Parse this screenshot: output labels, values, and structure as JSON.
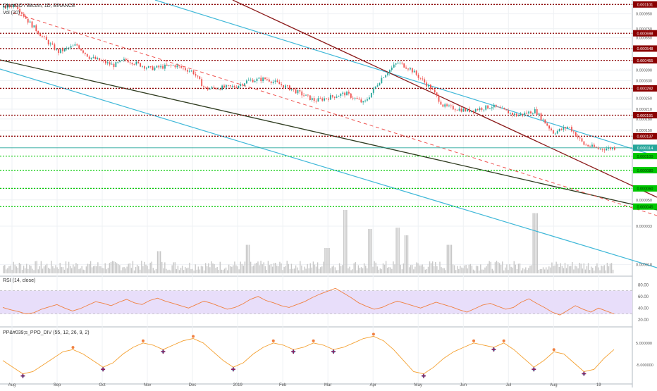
{
  "header": {
    "symbol_title": "QtumGO / Bitcoin, 1D, BINANCE",
    "volume_label": "Vol (20)"
  },
  "colors": {
    "grid": "#eef1f4",
    "up": "#26a69a",
    "down": "#ef5350",
    "volume": "#c8c8c8",
    "resistance": "#8b0000",
    "support_green": "#00c800",
    "channel_cyan": "#40b8d8",
    "trend_dark_red": "#8b1a1a",
    "trend_dark_green": "#2e3b1f",
    "rsi_band": "#e8defa",
    "rsi_line": "#f08040",
    "ppo_line": "#f4a030",
    "last_price": "#26a69a"
  },
  "chart_data": [
    {
      "type": "candlestick",
      "panel": "price",
      "title": "QtumGO / Bitcoin, 1D, BINANCE",
      "x_ticks": [
        "Aug",
        "Sep",
        "Oct",
        "Nov",
        "Dec",
        "2019",
        "Feb",
        "Mar",
        "Apr",
        "May",
        "Jun",
        "Jul",
        "Aug",
        "19"
      ],
      "y_scale": "log",
      "ylim": [
        1.6e-05,
        0.00113
      ],
      "y_ticks": [
        "0.000950",
        "0.000750",
        "0.000650",
        "0.000390",
        "0.000330",
        "0.000250",
        "0.000210",
        "0.000180",
        "0.000150",
        "0.000060",
        "0.000050",
        "0.000033",
        "0.000018"
      ],
      "y_tick_values": [
        0.00095,
        0.00075,
        0.00065,
        0.00039,
        0.00033,
        0.00025,
        0.00021,
        0.00018,
        0.00015,
        6e-05,
        5e-05,
        3.3e-05,
        1.8e-05
      ],
      "resistance_levels": [
        {
          "label": "0.001101",
          "value": 0.001101
        },
        {
          "label": "0.000698",
          "value": 0.000698
        },
        {
          "label": "0.000548",
          "value": 0.000548
        },
        {
          "label": "0.000455",
          "value": 0.000455
        },
        {
          "label": "0.000292",
          "value": 0.000292
        },
        {
          "label": "0.000191",
          "value": 0.000191
        },
        {
          "label": "0.000137",
          "value": 0.000137
        }
      ],
      "support_levels": [
        {
          "label": "0.000100",
          "value": 0.0001
        },
        {
          "label": "0.000080",
          "value": 8e-05
        },
        {
          "label": "0.000060",
          "value": 6e-05
        },
        {
          "label": "0.000045",
          "value": 4.5e-05
        }
      ],
      "last_price": {
        "label": "0.000114",
        "value": 0.000114
      },
      "price_path_knots": [
        [
          0,
          0.00105
        ],
        [
          0.02,
          0.0011
        ],
        [
          0.04,
          0.00085
        ],
        [
          0.07,
          0.00062
        ],
        [
          0.09,
          0.00052
        ],
        [
          0.12,
          0.00058
        ],
        [
          0.14,
          0.00048
        ],
        [
          0.18,
          0.00042
        ],
        [
          0.2,
          0.00046
        ],
        [
          0.24,
          0.0004
        ],
        [
          0.28,
          0.00042
        ],
        [
          0.31,
          0.00038
        ],
        [
          0.33,
          0.00029
        ],
        [
          0.38,
          0.0003
        ],
        [
          0.4,
          0.00033
        ],
        [
          0.43,
          0.00034
        ],
        [
          0.47,
          0.00029
        ],
        [
          0.51,
          0.00024
        ],
        [
          0.56,
          0.00027
        ],
        [
          0.59,
          0.00023
        ],
        [
          0.62,
          0.00035
        ],
        [
          0.645,
          0.00044
        ],
        [
          0.665,
          0.0004
        ],
        [
          0.7,
          0.00029
        ],
        [
          0.72,
          0.00022
        ],
        [
          0.76,
          0.000205
        ],
        [
          0.8,
          0.00022
        ],
        [
          0.84,
          0.00019
        ],
        [
          0.87,
          0.000205
        ],
        [
          0.9,
          0.000145
        ],
        [
          0.925,
          0.00016
        ],
        [
          0.95,
          0.00012
        ],
        [
          0.975,
          0.000112
        ],
        [
          1.0,
          0.000114
        ]
      ],
      "volume_spikes": [
        {
          "x": 0.255,
          "v": 0.35
        },
        {
          "x": 0.4,
          "v": 0.45
        },
        {
          "x": 0.53,
          "v": 0.4
        },
        {
          "x": 0.56,
          "v": 1.0
        },
        {
          "x": 0.6,
          "v": 0.7
        },
        {
          "x": 0.645,
          "v": 0.72
        },
        {
          "x": 0.66,
          "v": 0.6
        },
        {
          "x": 0.87,
          "v": 0.95
        },
        {
          "x": 0.73,
          "v": 0.45
        }
      ]
    },
    {
      "type": "line",
      "panel": "rsi",
      "title": "RSI (14, close)",
      "ylim": [
        10,
        90
      ],
      "y_ticks": [
        "80.00",
        "60.00",
        "40.00",
        "20.00"
      ],
      "y_tick_values": [
        80,
        60,
        40,
        20
      ],
      "band": [
        30,
        70
      ],
      "series": [
        {
          "values": [
            41,
            37,
            34,
            30,
            32,
            38,
            42,
            46,
            40,
            35,
            39,
            45,
            51,
            48,
            44,
            50,
            55,
            49,
            46,
            53,
            57,
            52,
            48,
            44,
            40,
            46,
            52,
            48,
            43,
            38,
            41,
            47,
            55,
            60,
            53,
            49,
            44,
            41,
            46,
            51,
            58,
            64,
            69,
            74,
            66,
            58,
            49,
            43,
            38,
            41,
            47,
            52,
            48,
            44,
            40,
            45,
            50,
            46,
            42,
            37,
            33,
            39,
            45,
            48,
            43,
            38,
            41,
            50,
            56,
            48,
            41,
            33,
            28,
            36,
            44,
            38,
            33,
            40,
            35,
            30
          ]
        }
      ]
    },
    {
      "type": "line",
      "panel": "ppo",
      "title": "PP&#039;s_PPO_DIV (55, 12, 26, 9, 2)",
      "ylim": [
        -12,
        11
      ],
      "y_ticks": [
        "5.000000",
        "-5.000000"
      ],
      "y_tick_values": [
        5,
        -5
      ],
      "series": [
        {
          "values": [
            -3,
            -6,
            -9,
            -8,
            -5,
            -2,
            1,
            2,
            0,
            -3,
            -6,
            -4,
            0,
            3,
            5,
            4,
            2,
            4,
            6,
            7,
            5,
            1,
            -3,
            -6,
            -4,
            0,
            3,
            5,
            4,
            2,
            3,
            5,
            4,
            2,
            3,
            5,
            7,
            8,
            6,
            2,
            -3,
            -8,
            -9,
            -6,
            -2,
            1,
            3,
            5,
            4,
            3,
            5,
            2,
            -2,
            -6,
            -3,
            1,
            0,
            -4,
            -8,
            -7,
            -2,
            2
          ]
        }
      ]
    }
  ]
}
